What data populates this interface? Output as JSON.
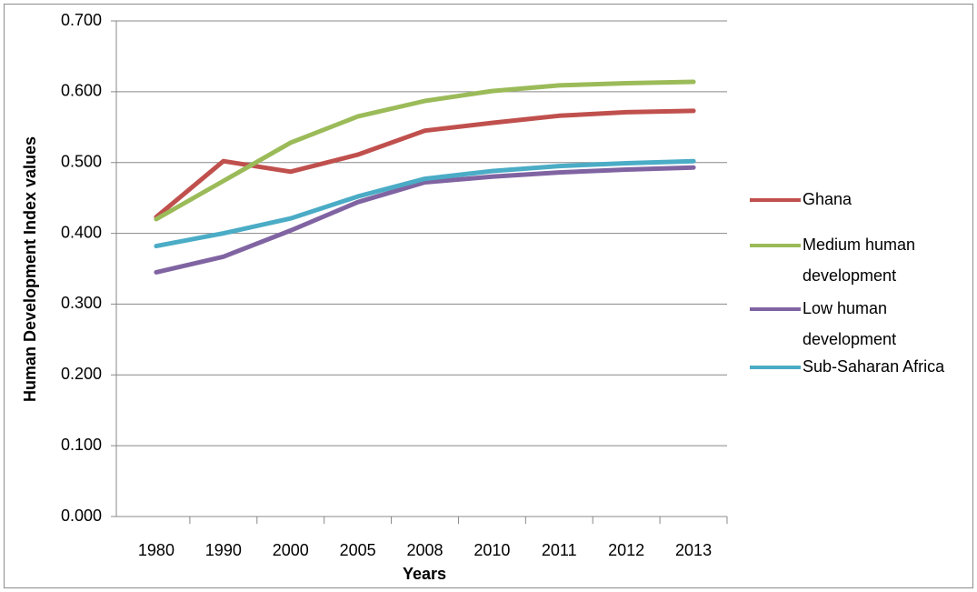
{
  "chart_data": {
    "type": "line",
    "y_label": "Human Development Index values",
    "x_label": "Years",
    "categories": [
      "1980",
      "1990",
      "2000",
      "2005",
      "2008",
      "2010",
      "2011",
      "2012",
      "2013"
    ],
    "series": [
      {
        "name": "Ghana",
        "color": "#c0504d",
        "values": [
          0.423,
          0.502,
          0.487,
          0.511,
          0.545,
          0.556,
          0.566,
          0.571,
          0.573
        ]
      },
      {
        "name": "Medium human development",
        "color": "#9bbb59",
        "values": [
          0.42,
          0.474,
          0.528,
          0.565,
          0.587,
          0.601,
          0.609,
          0.612,
          0.614
        ]
      },
      {
        "name": "Low human development",
        "color": "#8064a2",
        "values": [
          0.345,
          0.367,
          0.404,
          0.444,
          0.472,
          0.48,
          0.486,
          0.49,
          0.493
        ]
      },
      {
        "name": "Sub-Saharan Africa",
        "color": "#4bacc6",
        "values": [
          0.382,
          0.4,
          0.421,
          0.452,
          0.477,
          0.488,
          0.495,
          0.499,
          0.502
        ]
      }
    ],
    "ylim": [
      0,
      0.7
    ],
    "yticks": [
      {
        "value": 0,
        "label": "0.000"
      },
      {
        "value": 0.1,
        "label": "0.100"
      },
      {
        "value": 0.2,
        "label": "0.200"
      },
      {
        "value": 0.3,
        "label": "0.300"
      },
      {
        "value": 0.4,
        "label": "0.400"
      },
      {
        "value": 0.5,
        "label": "0.500"
      },
      {
        "value": 0.6,
        "label": "0.600"
      },
      {
        "value": 0.7,
        "label": "0.700"
      }
    ],
    "grid": true,
    "legend": "right"
  }
}
